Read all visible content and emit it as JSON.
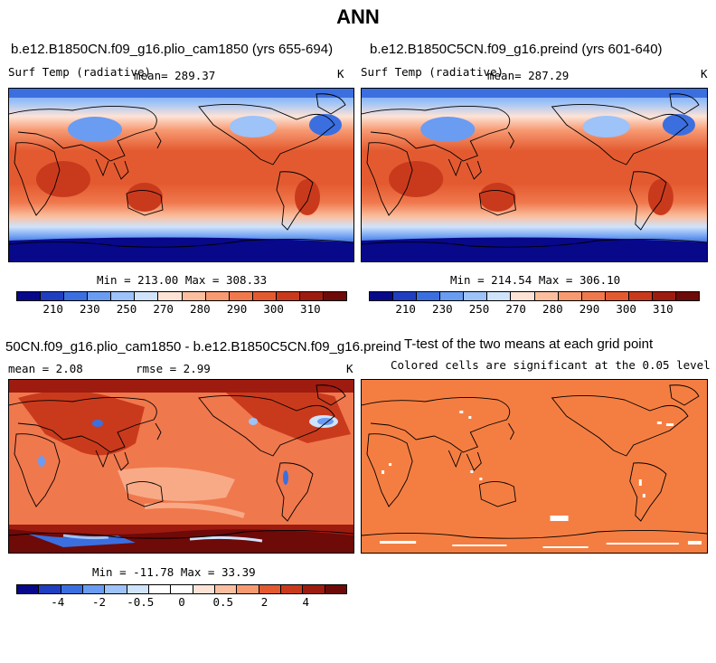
{
  "page_title": "ANN",
  "chart_data": [
    {
      "type": "heatmap",
      "title": "b.e12.B1850CN.f09_g16.plio_cam1850 (yrs 655-694)",
      "variable": "Surf Temp (radiative)",
      "mean_label": "mean= 289.37",
      "units": "K",
      "stats": "Min = 213.00 Max = 308.33",
      "colorbar_levels": [
        "210",
        "230",
        "250",
        "270",
        "280",
        "290",
        "300",
        "310"
      ]
    },
    {
      "type": "heatmap",
      "title": "b.e12.B1850C5CN.f09_g16.preind (yrs 601-640)",
      "variable": "Surf Temp (radiative)",
      "mean_label": "mean= 287.29",
      "units": "K",
      "stats": "Min = 214.54 Max = 306.10",
      "colorbar_levels": [
        "210",
        "230",
        "250",
        "270",
        "280",
        "290",
        "300",
        "310"
      ]
    },
    {
      "type": "heatmap",
      "title": "50CN.f09_g16.plio_cam1850 - b.e12.B1850C5CN.f09_g16.preind",
      "mean_label": "mean =    2.08",
      "rmse_label": "rmse =    2.99",
      "units": "K",
      "stats": "Min = -11.78 Max =  33.39",
      "colorbar_levels": [
        "-4",
        "-2",
        "-0.5",
        "0",
        "0.5",
        "2",
        "4"
      ]
    },
    {
      "type": "heatmap",
      "title": "T-test of the two means at each grid point",
      "subtitle": "Colored cells are significant at the 0.05 level"
    }
  ],
  "colors": {
    "abs_scale": [
      "#08088a",
      "#1f3fc0",
      "#3b6fe0",
      "#6a9cf2",
      "#9dc3f8",
      "#cfe3fb",
      "#fde3d6",
      "#fbbf9f",
      "#f79a72",
      "#f0784d",
      "#e45a30",
      "#c93a1c",
      "#9e1b10",
      "#6e0a08"
    ],
    "diff_scale": [
      "#08088a",
      "#1f3fc0",
      "#3b6fe0",
      "#6a9cf2",
      "#9dc3f8",
      "#cfe3fb",
      "#ffffff",
      "#ffffff",
      "#fde3d6",
      "#fbbf9f",
      "#f79a72",
      "#e45a30",
      "#c93a1c",
      "#9e1b10",
      "#6e0a08"
    ]
  }
}
